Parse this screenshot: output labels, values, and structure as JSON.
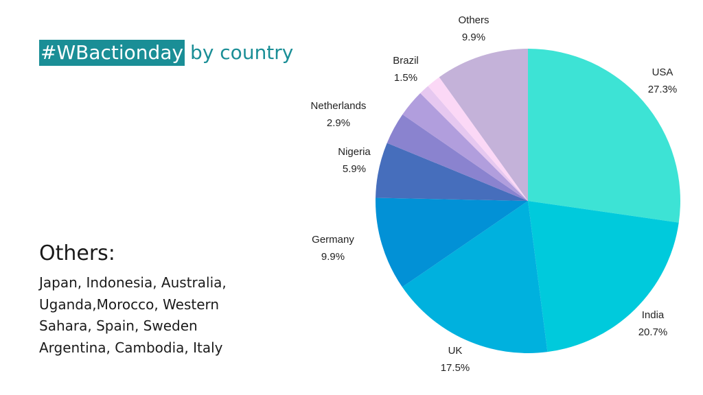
{
  "title": {
    "hashtag": "#WBactionday",
    "rest": "by country"
  },
  "others_panel": {
    "heading": "Others:",
    "lines": [
      "Japan, Indonesia, Australia,",
      "Uganda,Morocco, Western",
      "Sahara, Spain, Sweden",
      "Argentina, Cambodia, Italy"
    ]
  },
  "colors": {
    "title_teal": "#1a8e96"
  },
  "chart_data": {
    "type": "pie",
    "title": "#WBactionday by country",
    "slices": [
      {
        "label": "USA",
        "value": 27.3,
        "value_label": "27.3%",
        "color": "#3de3d5"
      },
      {
        "label": "India",
        "value": 20.7,
        "value_label": "20.7%",
        "color": "#00cadc"
      },
      {
        "label": "UK",
        "value": 17.5,
        "value_label": "17.5%",
        "color": "#00b1de"
      },
      {
        "label": "Germany",
        "value": 9.9,
        "value_label": "9.9%",
        "color": "#0291d6"
      },
      {
        "label": "Nigeria",
        "value": 5.9,
        "value_label": "5.9%",
        "color": "#466ebc"
      },
      {
        "label": "",
        "value": 3.4,
        "value_label": "",
        "color": "#8a83cf"
      },
      {
        "label": "Netherlands",
        "value": 2.9,
        "value_label": "2.9%",
        "color": "#b19edd"
      },
      {
        "label": "",
        "value": 1.1,
        "value_label": "",
        "color": "#e6c8f0"
      },
      {
        "label": "Brazil",
        "value": 1.5,
        "value_label": "1.5%",
        "color": "#fbd8f6"
      },
      {
        "label": "Others",
        "value": 9.9,
        "value_label": "9.9%",
        "color": "#c4b2d9"
      }
    ]
  }
}
